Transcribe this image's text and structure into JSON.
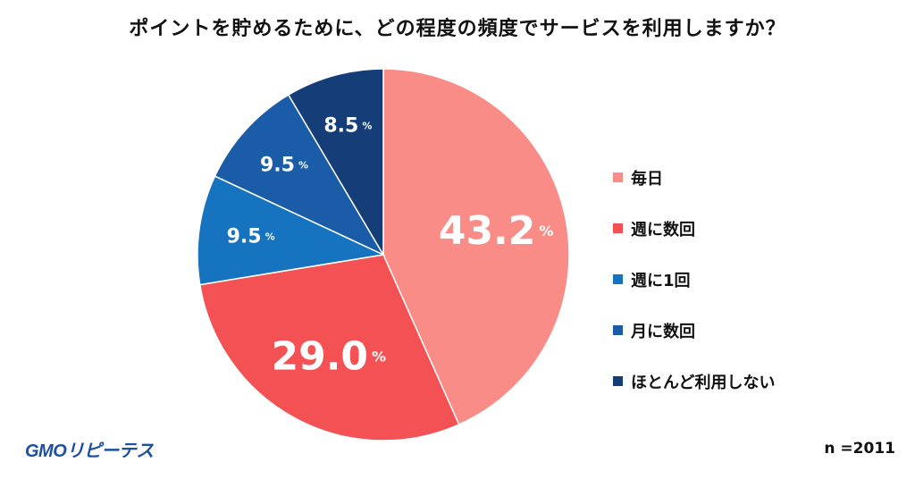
{
  "title": "ポイントを貯めるために、どの程度の頻度でサービスを利用しますか？",
  "chart_data": {
    "type": "pie",
    "title": "ポイントを貯めるために、どの程度の頻度でサービスを利用しますか？",
    "unit": "%",
    "slices": [
      {
        "name": "毎日",
        "value": 43.2,
        "color": "#fa8c87"
      },
      {
        "name": "週に数回",
        "value": 29.0,
        "color": "#f45154"
      },
      {
        "name": "週に1回",
        "value": 9.5,
        "color": "#1673bf"
      },
      {
        "name": "月に数回",
        "value": 9.5,
        "color": "#1a5ca8"
      },
      {
        "name": "ほとんど利用しない",
        "value": 8.5,
        "color": "#153d77"
      }
    ]
  },
  "legend": [
    {
      "label": "毎日",
      "color": "#fa8c87"
    },
    {
      "label": "週に数回",
      "color": "#f45154"
    },
    {
      "label": "週に1回",
      "color": "#1673bf"
    },
    {
      "label": "月に数回",
      "color": "#1a5ca8"
    },
    {
      "label": "ほとんど利用しない",
      "color": "#153d77"
    }
  ],
  "logo": "GMOリピーテス",
  "sample_size": "n =2011"
}
